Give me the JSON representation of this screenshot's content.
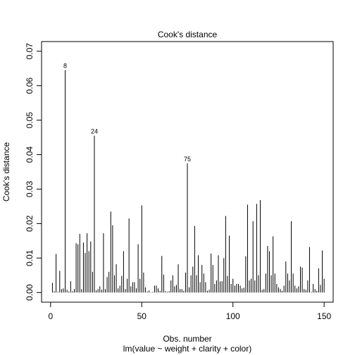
{
  "chart_data": {
    "type": "bar",
    "title": "Cook's distance",
    "xlabel": "Obs. number",
    "subtitle": "lm(value ~ weight + clarity + color)",
    "ylabel": "Cook's distance",
    "xlim": [
      -4.96,
      154.96
    ],
    "ylim": [
      -0.0028,
      0.0728
    ],
    "x_ticks": [
      0,
      50,
      100,
      150
    ],
    "y_ticks": [
      0.0,
      0.01,
      0.02,
      0.03,
      0.04,
      0.05,
      0.06,
      0.07
    ],
    "y_tick_labels": [
      "0.00",
      "0.01",
      "0.02",
      "0.03",
      "0.04",
      "0.05",
      "0.06",
      "0.07"
    ],
    "box": true,
    "grid": false,
    "x": [
      1,
      2,
      3,
      4,
      5,
      6,
      7,
      8,
      9,
      10,
      11,
      12,
      13,
      14,
      15,
      16,
      17,
      18,
      19,
      20,
      21,
      22,
      23,
      24,
      25,
      26,
      27,
      28,
      29,
      30,
      31,
      32,
      33,
      34,
      35,
      36,
      37,
      38,
      39,
      40,
      41,
      42,
      43,
      44,
      45,
      46,
      47,
      48,
      49,
      50,
      51,
      52,
      53,
      54,
      55,
      56,
      57,
      58,
      59,
      60,
      61,
      62,
      63,
      64,
      65,
      66,
      67,
      68,
      69,
      70,
      71,
      72,
      73,
      74,
      75,
      76,
      77,
      78,
      79,
      80,
      81,
      82,
      83,
      84,
      85,
      86,
      87,
      88,
      89,
      90,
      91,
      92,
      93,
      94,
      95,
      96,
      97,
      98,
      99,
      100,
      101,
      102,
      103,
      104,
      105,
      106,
      107,
      108,
      109,
      110,
      111,
      112,
      113,
      114,
      115,
      116,
      117,
      118,
      119,
      120,
      121,
      122,
      123,
      124,
      125,
      126,
      127,
      128,
      129,
      130,
      131,
      132,
      133,
      134,
      135,
      136,
      137,
      138,
      139,
      140,
      141,
      142,
      143,
      144,
      145,
      146,
      147,
      148,
      149,
      150
    ],
    "values": [
      0.0028,
      0.0004,
      0.0112,
      0.0002,
      0.0063,
      0.001,
      0.0012,
      0.0645,
      0.0008,
      0.0003,
      0.0033,
      0.0004,
      0.001,
      0.0143,
      0.014,
      0.017,
      0.001,
      0.0145,
      0.0115,
      0.0172,
      0.012,
      0.0148,
      0.006,
      0.0455,
      0.0006,
      0.001,
      0.0018,
      0.0008,
      0.0172,
      0.001,
      0.0045,
      0.006,
      0.0235,
      0.0195,
      0.005,
      0.0082,
      0.0012,
      0.002,
      0.0048,
      0.012,
      0.001,
      0.004,
      0.0215,
      0.0018,
      0.003,
      0.003,
      0.0012,
      0.014,
      0.004,
      0.0253,
      0.0058,
      0.0015,
      0.0003,
      0.0006,
      0.0001,
      0.0002,
      0.002,
      0.002,
      0.0012,
      0.0005,
      0.0106,
      0.0052,
      0.0004,
      0.0002,
      0.0004,
      0.0035,
      0.005,
      0.0018,
      0.0022,
      0.0082,
      0.001,
      0.001,
      0.0005,
      0.0058,
      0.0375,
      0.0015,
      0.005,
      0.0075,
      0.0193,
      0.005,
      0.0108,
      0.003,
      0.008,
      0.0055,
      0.003,
      0.0005,
      0.0008,
      0.0113,
      0.008,
      0.0025,
      0.0035,
      0.0108,
      0.0032,
      0.0033,
      0.01,
      0.0222,
      0.0048,
      0.0165,
      0.0025,
      0.004,
      0.002,
      0.0025,
      0.0025,
      0.002,
      0.0012,
      0.0014,
      0.0105,
      0.0255,
      0.0035,
      0.004,
      0.0207,
      0.0035,
      0.0257,
      0.005,
      0.0268,
      0.0008,
      0.001,
      0.0055,
      0.0135,
      0.012,
      0.005,
      0.0163,
      0.0055,
      0.0025,
      0.0015,
      0.001,
      0.0005,
      0.002,
      0.009,
      0.0055,
      0.0035,
      0.0207,
      0.0055,
      0.002,
      0.0012,
      0.0018,
      0.0075,
      0.0072,
      0.001,
      0.0008,
      0.0035,
      0.0132,
      0.0002,
      0.0025,
      0.001,
      0.0005,
      0.007,
      0.0022,
      0.0122,
      0.004
    ],
    "labeled_points": [
      {
        "x": 8,
        "label": "8"
      },
      {
        "x": 24,
        "label": "24"
      },
      {
        "x": 75,
        "label": "75"
      }
    ]
  }
}
